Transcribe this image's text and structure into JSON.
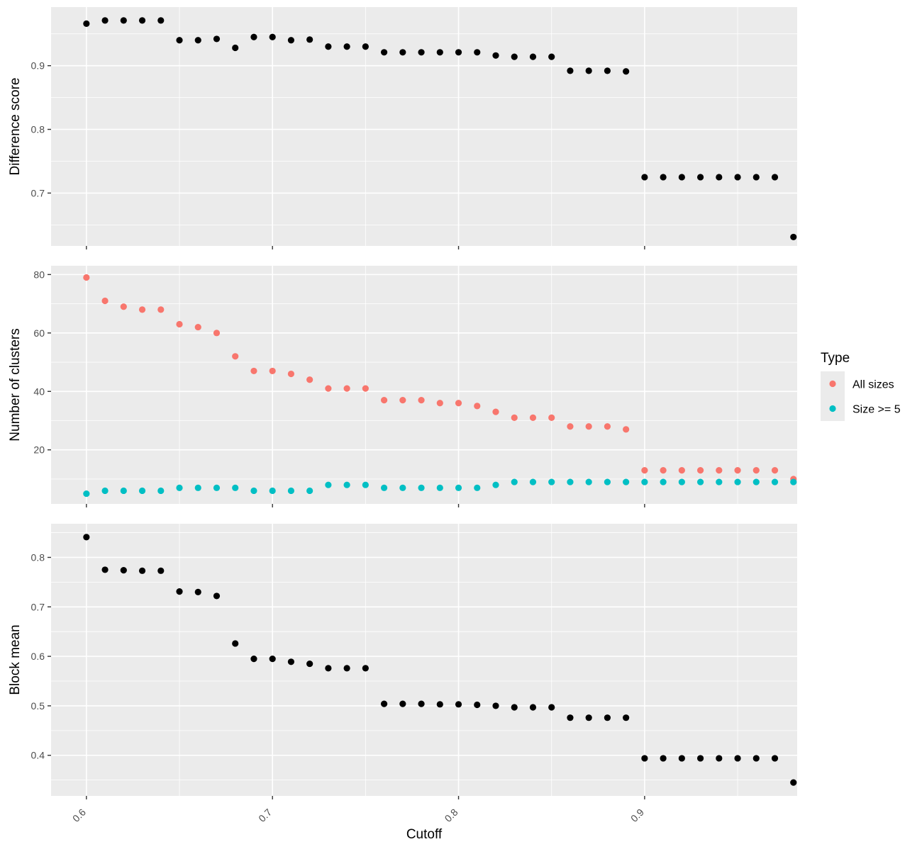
{
  "chart_data": {
    "type": "scatter",
    "xlabel": "Cutoff",
    "x": [
      0.6,
      0.61,
      0.62,
      0.63,
      0.64,
      0.65,
      0.66,
      0.67,
      0.68,
      0.69,
      0.7,
      0.71,
      0.72,
      0.73,
      0.74,
      0.75,
      0.76,
      0.77,
      0.78,
      0.79,
      0.8,
      0.81,
      0.82,
      0.83,
      0.84,
      0.85,
      0.86,
      0.87,
      0.88,
      0.89,
      0.9,
      0.91,
      0.92,
      0.93,
      0.94,
      0.95,
      0.96,
      0.97,
      0.98
    ],
    "xlim": [
      0.581,
      0.982
    ],
    "xticks": [
      0.6,
      0.7,
      0.8,
      0.9
    ],
    "xtick_labels": [
      "0.6",
      "0.7",
      "0.8",
      "0.9"
    ],
    "grid": true,
    "panels": [
      {
        "ylabel": "Difference score",
        "ylim": [
          0.617,
          0.992
        ],
        "yticks": [
          0.7,
          0.8,
          0.9
        ],
        "ytick_labels": [
          "0.7",
          "0.8",
          "0.9"
        ],
        "series": [
          {
            "color": "#000000",
            "values": [
              0.966,
              0.971,
              0.971,
              0.971,
              0.971,
              0.94,
              0.94,
              0.942,
              0.928,
              0.945,
              0.945,
              0.94,
              0.941,
              0.93,
              0.93,
              0.93,
              0.921,
              0.921,
              0.921,
              0.921,
              0.921,
              0.921,
              0.916,
              0.914,
              0.914,
              0.914,
              0.892,
              0.892,
              0.892,
              0.891,
              0.725,
              0.725,
              0.725,
              0.725,
              0.725,
              0.725,
              0.725,
              0.725,
              0.631
            ]
          }
        ]
      },
      {
        "ylabel": "Number of clusters",
        "ylim": [
          1.5,
          83
        ],
        "yticks": [
          20,
          40,
          60,
          80
        ],
        "ytick_labels": [
          "20",
          "40",
          "60",
          "80"
        ],
        "series": [
          {
            "name": "All sizes",
            "color": "#F8766D",
            "values": [
              79,
              71,
              69,
              68,
              68,
              63,
              62,
              60,
              52,
              47,
              47,
              46,
              44,
              41,
              41,
              41,
              37,
              37,
              37,
              36,
              36,
              35,
              33,
              31,
              31,
              31,
              28,
              28,
              28,
              27,
              13,
              13,
              13,
              13,
              13,
              13,
              13,
              13,
              10
            ]
          },
          {
            "name": "Size >= 5",
            "color": "#00BFC4",
            "values": [
              5,
              6,
              6,
              6,
              6,
              7,
              7,
              7,
              7,
              6,
              6,
              6,
              6,
              8,
              8,
              8,
              7,
              7,
              7,
              7,
              7,
              7,
              8,
              9,
              9,
              9,
              9,
              9,
              9,
              9,
              9,
              9,
              9,
              9,
              9,
              9,
              9,
              9,
              9
            ]
          }
        ]
      },
      {
        "ylabel": "Block mean",
        "ylim": [
          0.318,
          0.868
        ],
        "yticks": [
          0.4,
          0.5,
          0.6,
          0.7,
          0.8
        ],
        "ytick_labels": [
          "0.4",
          "0.5",
          "0.6",
          "0.7",
          "0.8"
        ],
        "series": [
          {
            "color": "#000000",
            "values": [
              0.841,
              0.775,
              0.774,
              0.773,
              0.773,
              0.731,
              0.73,
              0.722,
              0.626,
              0.595,
              0.595,
              0.589,
              0.585,
              0.576,
              0.576,
              0.576,
              0.504,
              0.504,
              0.504,
              0.503,
              0.503,
              0.502,
              0.5,
              0.497,
              0.497,
              0.497,
              0.476,
              0.476,
              0.476,
              0.476,
              0.394,
              0.394,
              0.394,
              0.394,
              0.394,
              0.394,
              0.394,
              0.394,
              0.345
            ]
          }
        ]
      }
    ],
    "legend": {
      "title": "Type",
      "position": "right",
      "items": [
        "All sizes",
        "Size >= 5"
      ]
    }
  }
}
